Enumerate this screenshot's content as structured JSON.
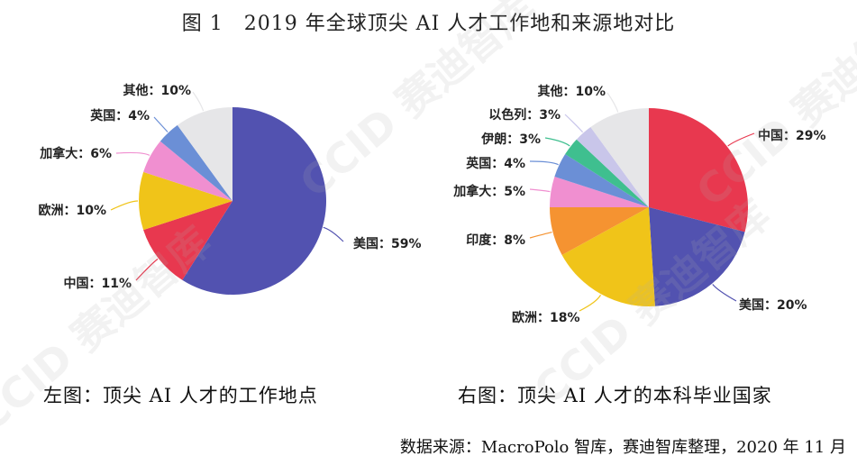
{
  "figure_title": "图 1　2019 年全球顶尖 AI 人才工作地和来源地对比",
  "captions": {
    "left": "左图：顶尖 AI 人才的工作地点",
    "right": "右图：顶尖 AI 人才的本科毕业国家"
  },
  "source_note": "数据来源：MacroPolo 智库，赛迪智库整理，2020 年 11 月",
  "watermark": "CCID 赛迪智库",
  "chart_data": [
    {
      "type": "pie",
      "title": "左图：顶尖 AI 人才的工作地点",
      "slices": [
        {
          "label": "美国：59%",
          "value": 59,
          "color": "#5252b0"
        },
        {
          "label": "中国：11%",
          "value": 11,
          "color": "#e8384f"
        },
        {
          "label": "欧洲：10%",
          "value": 10,
          "color": "#f0c419"
        },
        {
          "label": "加拿大：6%",
          "value": 6,
          "color": "#f08fd0"
        },
        {
          "label": "英国：4%",
          "value": 4,
          "color": "#6b8fd6"
        },
        {
          "label": "其他：10%",
          "value": 10,
          "color": "#e6e6e8"
        }
      ]
    },
    {
      "type": "pie",
      "title": "右图：顶尖 AI 人才的本科毕业国家",
      "slices": [
        {
          "label": "中国：29%",
          "value": 29,
          "color": "#e8384f"
        },
        {
          "label": "美国：20%",
          "value": 20,
          "color": "#5252b0"
        },
        {
          "label": "欧洲：18%",
          "value": 18,
          "color": "#f0c419"
        },
        {
          "label": "印度：8%",
          "value": 8,
          "color": "#f59331"
        },
        {
          "label": "加拿大：5%",
          "value": 5,
          "color": "#f08fd0"
        },
        {
          "label": "英国：4%",
          "value": 4,
          "color": "#6b8fd6"
        },
        {
          "label": "伊朗：3%",
          "value": 3,
          "color": "#3fbf8f"
        },
        {
          "label": "以色列：3%",
          "value": 3,
          "color": "#c9c6ea"
        },
        {
          "label": "其他：10%",
          "value": 10,
          "color": "#e6e6e8"
        }
      ]
    }
  ]
}
